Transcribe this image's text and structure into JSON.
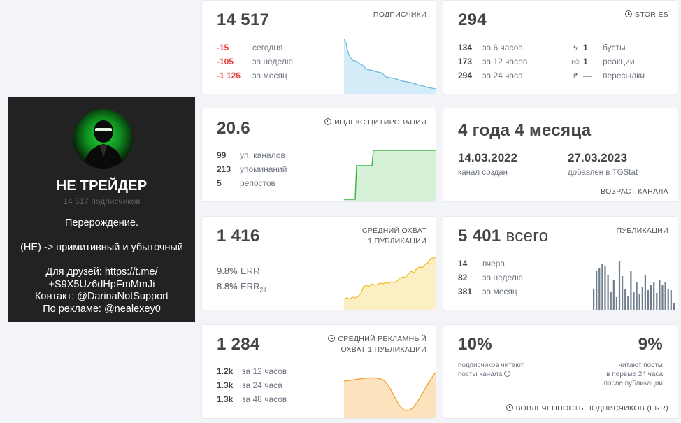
{
  "profile": {
    "name": "НЕ ТРЕЙДЕР",
    "subscribers": "14 517 подписчиков",
    "description": [
      "Перерождение.",
      "",
      "(НЕ) -> примитивный и убыточный",
      "",
      "Для друзей: https://t.me/",
      "+S9X5Uz6dHpFmMmJi",
      "Контакт: @DarinaNotSupport",
      "По рекламе: @nealexey0"
    ]
  },
  "subscribers_card": {
    "value": "14 517",
    "label": "ПОДПИСЧИКИ",
    "rows": [
      {
        "value": "-15",
        "text": "сегодня"
      },
      {
        "value": "-105",
        "text": "за неделю"
      },
      {
        "value": "-1 126",
        "text": "за месяц"
      }
    ],
    "color": "#7cc3e6"
  },
  "stories_card": {
    "value": "294",
    "label": "STORIES",
    "rows": [
      {
        "value": "134",
        "text": "за 6 часов"
      },
      {
        "value": "173",
        "text": "за 12 часов"
      },
      {
        "value": "294",
        "text": "за 24 часа"
      }
    ],
    "stats": [
      {
        "icon": "bolt-icon",
        "value": "1",
        "text": "бусты"
      },
      {
        "icon": "thumbs-up-icon",
        "value": "1",
        "text": "реакции"
      },
      {
        "icon": "share-icon",
        "value": "—",
        "text": "пересылки"
      }
    ]
  },
  "citation_card": {
    "value": "20.6",
    "label": "ИНДЕКС ЦИТИРОВАНИЯ",
    "rows": [
      {
        "value": "99",
        "text": "уп. каналов"
      },
      {
        "value": "213",
        "text": "упоминаний"
      },
      {
        "value": "5",
        "text": "репостов"
      }
    ],
    "color": "#3bb54a"
  },
  "age_card": {
    "value": "4 года 4 месяца",
    "created_date": "14.03.2022",
    "created_label": "канал создан",
    "added_date": "27.03.2023",
    "added_label": "добавлен в TGStat",
    "label": "ВОЗРАСТ КАНАЛА"
  },
  "reach_card": {
    "value": "1 416",
    "label_line1": "СРЕДНИЙ ОХВАТ",
    "label_line2": "1 ПУБЛИКАЦИИ",
    "rows": [
      {
        "value": "9.8%",
        "text": "ERR"
      },
      {
        "value": "8.8%",
        "text": "ERR",
        "sub": "24"
      }
    ],
    "color": "#f3c64a"
  },
  "posts_card": {
    "value": "5 401",
    "value_suffix": "всего",
    "label": "ПУБЛИКАЦИИ",
    "rows": [
      {
        "value": "14",
        "text": "вчера"
      },
      {
        "value": "82",
        "text": "за неделю"
      },
      {
        "value": "381",
        "text": "за месяц"
      }
    ],
    "color": "#6f7d8c"
  },
  "ad_reach_card": {
    "value": "1 284",
    "label_line1": "СРЕДНИЙ РЕКЛАМНЫЙ",
    "label_line2": "ОХВАТ 1 ПУБЛИКАЦИИ",
    "rows": [
      {
        "value": "1.2k",
        "text": "за 12 часов"
      },
      {
        "value": "1.3k",
        "text": "за 24 часа"
      },
      {
        "value": "1.3k",
        "text": "за 48 часов"
      }
    ],
    "color": "#f4a23a"
  },
  "engagement_card": {
    "left_value": "10%",
    "left_text1": "подписчиков читают",
    "left_text2": "посты канала",
    "right_value": "9%",
    "right_text1": "читают посты",
    "right_text2": "в первые 24 часа",
    "right_text3": "после публикации",
    "label": "ВОВЛЕЧЕННОСТЬ ПОДПИСЧИКОВ (ERR)"
  }
}
